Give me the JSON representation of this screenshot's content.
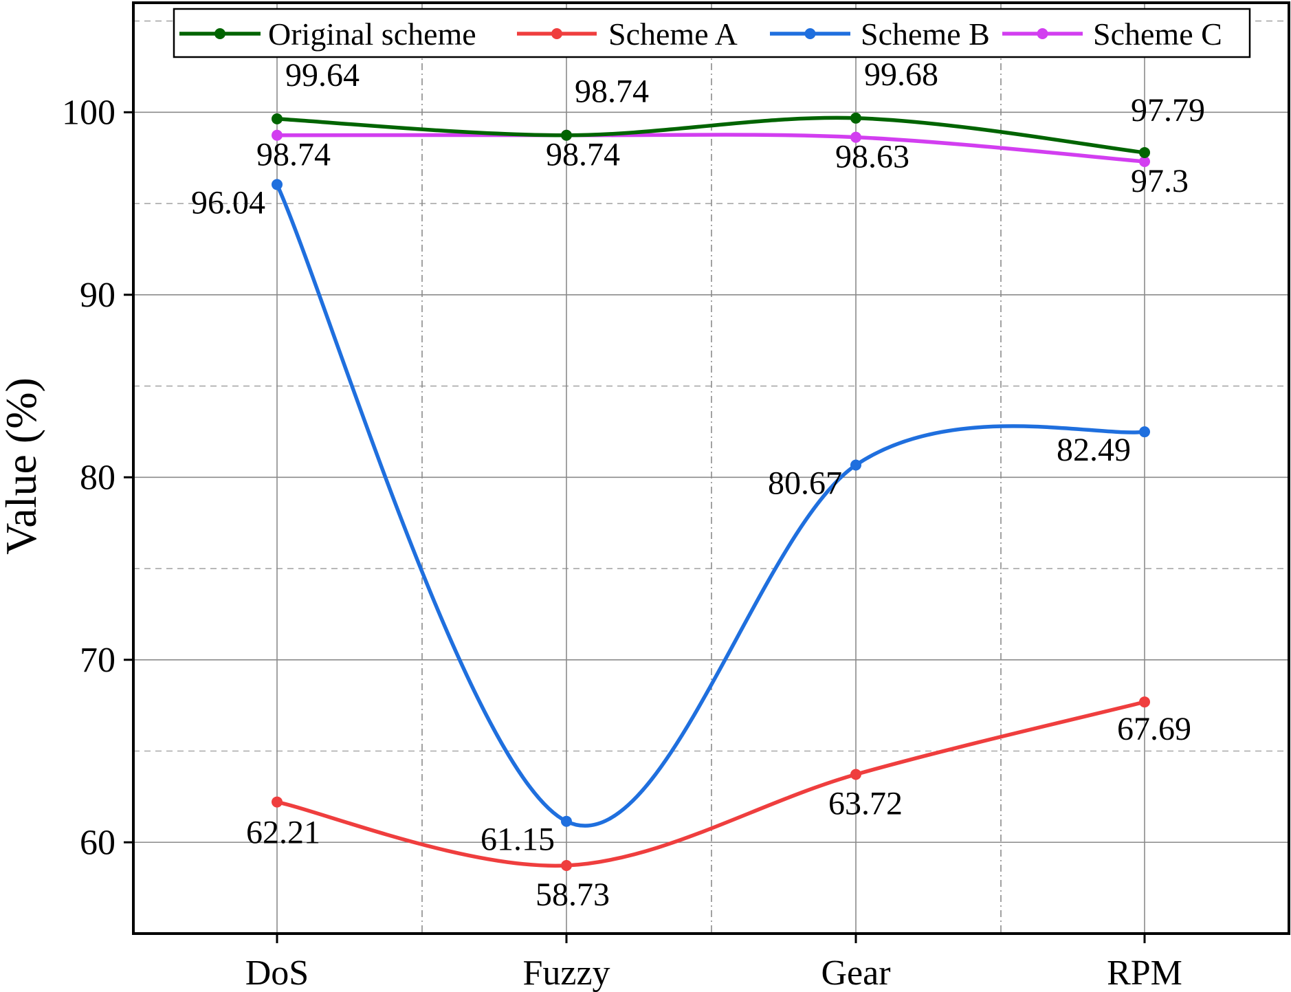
{
  "chart_data": {
    "type": "line",
    "title": "",
    "xlabel": "",
    "ylabel": "Value (%)",
    "categories": [
      "DoS",
      "Fuzzy",
      "Gear",
      "RPM"
    ],
    "ylim": [
      55,
      106
    ],
    "yticks": [
      60,
      70,
      80,
      90,
      100
    ],
    "minor_gridlines": [
      65,
      75,
      85,
      95,
      105
    ],
    "grid": true,
    "legend_position": "top",
    "series": [
      {
        "name": "Original scheme",
        "color": "#006400",
        "values": [
          99.64,
          98.74,
          99.68,
          97.79
        ],
        "labels": [
          "99.64",
          "98.74",
          "99.68",
          "97.79"
        ]
      },
      {
        "name": "Scheme A",
        "color": "#ef3e3e",
        "values": [
          62.21,
          58.73,
          63.72,
          67.69
        ],
        "labels": [
          "62.21",
          "58.73",
          "63.72",
          "67.69"
        ]
      },
      {
        "name": "Scheme B",
        "color": "#1f6fde",
        "values": [
          96.04,
          61.15,
          80.67,
          82.49
        ],
        "labels": [
          "96.04",
          "61.15",
          "80.67",
          "82.49"
        ]
      },
      {
        "name": "Scheme C",
        "color": "#d23ef0",
        "values": [
          98.74,
          98.74,
          98.63,
          97.3
        ],
        "labels": [
          "98.74",
          "98.74",
          "98.63",
          "97.3"
        ]
      }
    ]
  }
}
